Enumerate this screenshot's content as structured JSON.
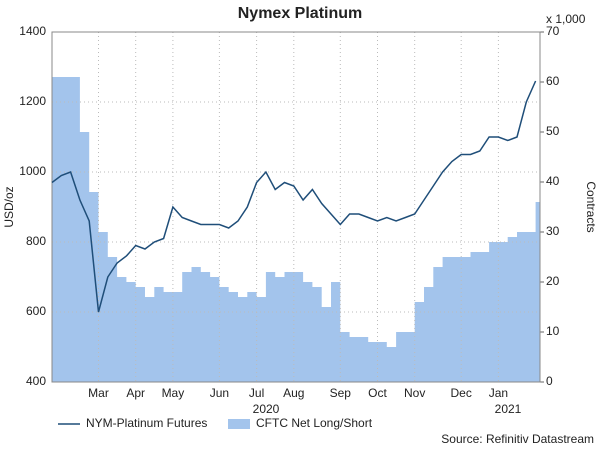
{
  "chart_data": {
    "type": "line",
    "title": "Nymex Platinum",
    "ylabel": "USD/oz",
    "y2label": "Contracts",
    "y2unit": "x 1,000",
    "year_labels": [
      "2020",
      "2021"
    ],
    "source": "Source: Refinitiv Datastream",
    "categories": [
      null,
      null,
      null,
      null,
      null,
      "Mar",
      null,
      null,
      null,
      "Apr",
      null,
      null,
      null,
      "May",
      null,
      null,
      null,
      null,
      "Jun",
      null,
      null,
      null,
      "Jul",
      null,
      null,
      null,
      "Aug",
      null,
      null,
      null,
      null,
      "Sep",
      null,
      null,
      null,
      "Oct",
      null,
      null,
      null,
      "Nov",
      null,
      null,
      null,
      null,
      "Dec",
      null,
      null,
      null,
      "Jan",
      null,
      null,
      null,
      null
    ],
    "series": [
      {
        "name": "NYM-Platinum Futures",
        "type": "line",
        "color": "#1f4e79",
        "axis": "y",
        "values": [
          970,
          990,
          1000,
          920,
          860,
          600,
          700,
          740,
          760,
          790,
          780,
          800,
          810,
          900,
          870,
          860,
          850,
          850,
          850,
          840,
          860,
          900,
          970,
          1000,
          950,
          970,
          960,
          920,
          950,
          910,
          880,
          850,
          880,
          880,
          870,
          860,
          870,
          860,
          870,
          880,
          920,
          960,
          1000,
          1030,
          1050,
          1050,
          1060,
          1100,
          1100,
          1090,
          1100,
          1200,
          1260
        ]
      },
      {
        "name": "CFTC Net Long/Short",
        "type": "area",
        "color": "#a3c4ec",
        "axis": "y2",
        "values": [
          61,
          61,
          61,
          50,
          38,
          30,
          25,
          21,
          20,
          19,
          17,
          19,
          18,
          18,
          22,
          23,
          22,
          21,
          19,
          18,
          17,
          18,
          17,
          22,
          21,
          22,
          22,
          20,
          19,
          15,
          20,
          10,
          9,
          9,
          8,
          8,
          7,
          10,
          10,
          16,
          19,
          23,
          25,
          25,
          25,
          26,
          26,
          28,
          28,
          29,
          30,
          30,
          36
        ]
      }
    ],
    "ylim": [
      400,
      1400
    ],
    "yticks": [
      400,
      600,
      800,
      1000,
      1200,
      1400
    ],
    "y2lim": [
      0,
      70
    ],
    "y2ticks": [
      0,
      10,
      20,
      30,
      40,
      50,
      60,
      70
    ],
    "grid": true
  }
}
